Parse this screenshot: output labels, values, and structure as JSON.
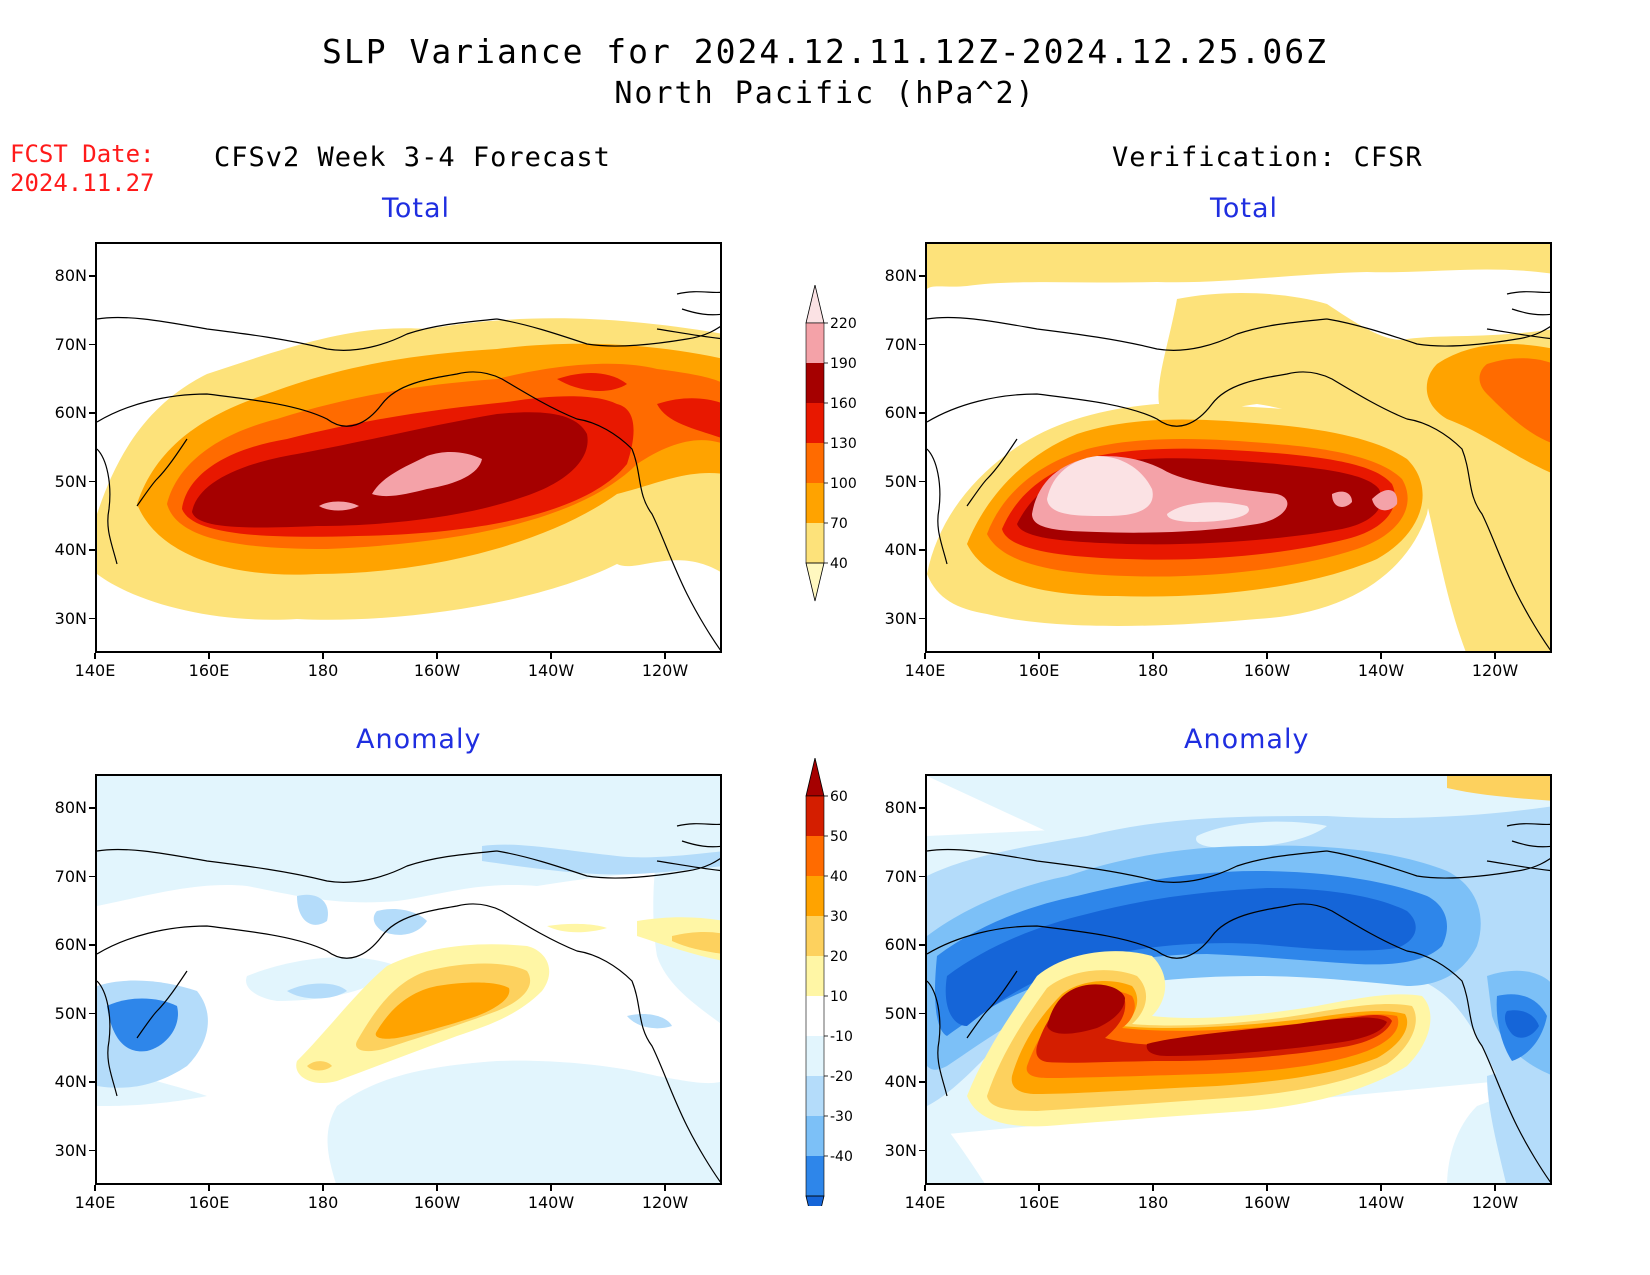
{
  "title": {
    "line1": "SLP Variance for 2024.12.11.12Z-2024.12.25.06Z",
    "line2": "North Pacific (hPa^2)"
  },
  "fcst_date": {
    "label": "FCST Date:",
    "value": "2024.11.27"
  },
  "columns": {
    "left": "CFSv2 Week 3-4 Forecast",
    "right": "Verification: CFSR"
  },
  "panels": {
    "tl": "Total",
    "tr": "Total",
    "bl": "Anomaly",
    "br": "Anomaly"
  },
  "axes": {
    "lat_labels": [
      "80N",
      "70N",
      "60N",
      "50N",
      "40N",
      "30N"
    ],
    "lat_values": [
      80,
      70,
      60,
      50,
      40,
      30
    ],
    "lon_labels": [
      "140E",
      "160E",
      "180",
      "160W",
      "140W",
      "120W"
    ],
    "lon_values": [
      140,
      160,
      180,
      200,
      220,
      240
    ],
    "lat_range": [
      25,
      85
    ],
    "lon_range": [
      140,
      250
    ]
  },
  "colorbars": {
    "total": {
      "levels": [
        "40",
        "70",
        "100",
        "130",
        "160",
        "190",
        "220"
      ],
      "colors": [
        "#fff8c0",
        "#fde27a",
        "#ffa300",
        "#ff6b00",
        "#e81800",
        "#a50000",
        "#f4a2a8",
        "#fbe2e4"
      ]
    },
    "anomaly": {
      "levels": [
        "-40",
        "-30",
        "-20",
        "-10",
        "10",
        "20",
        "30",
        "40",
        "50",
        "60"
      ],
      "colors": [
        "#1565d8",
        "#2e86ea",
        "#7cc0f7",
        "#b4dcfa",
        "#e2f5fd",
        "#ffffff",
        "#fff6a5",
        "#fdd15e",
        "#ffa300",
        "#ff6b00",
        "#d41e00",
        "#a50000"
      ]
    }
  },
  "palette": {
    "total": [
      "#fde27a",
      "#ffa300",
      "#ff6b00",
      "#e81800",
      "#a50000",
      "#f4a2a8",
      "#fbe2e4"
    ],
    "anom_pos": [
      "#fff6a5",
      "#fdd15e",
      "#ffa300",
      "#ff6b00",
      "#d41e00",
      "#a50000"
    ],
    "anom_neg": [
      "#e2f5fd",
      "#b4dcfa",
      "#7cc0f7",
      "#2e86ea",
      "#1565d8"
    ]
  }
}
